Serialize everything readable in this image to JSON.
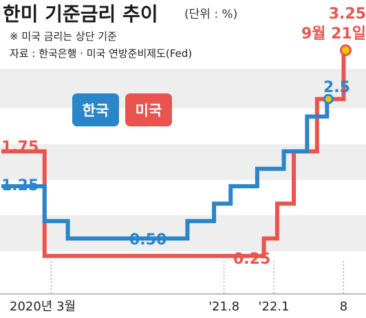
{
  "header": {
    "title": "한미 기준금리 추이",
    "unit": "(단위 : %)",
    "note": "※ 미국 금리는 상단 기준",
    "source": "자료 : 한국은행 · 미국 연방준비제도(Fed)"
  },
  "colors": {
    "korea": "#2a86c8",
    "us": "#e8554e",
    "band": "#eeeeee"
  },
  "chart_data": {
    "type": "line",
    "title": "한미 기준금리 추이",
    "unit": "%",
    "step": true,
    "grid": "horizontal bands",
    "legend_position": "top-left",
    "x_ticks": [
      "2020년 3월",
      "'21.8",
      "'22.1",
      "8"
    ],
    "series": [
      {
        "name": "한국",
        "color": "#2a86c8",
        "points": [
          {
            "x": 0.0,
            "y": 1.25
          },
          {
            "x": 1.3,
            "y": 0.75
          },
          {
            "x": 2.0,
            "y": 0.5
          },
          {
            "x": 5.6,
            "y": 0.75
          },
          {
            "x": 6.4,
            "y": 1.0
          },
          {
            "x": 6.9,
            "y": 1.25
          },
          {
            "x": 7.7,
            "y": 1.5
          },
          {
            "x": 8.5,
            "y": 1.75
          },
          {
            "x": 9.2,
            "y": 2.25
          },
          {
            "x": 9.8,
            "y": 2.5
          },
          {
            "x": 10.0,
            "y": 2.5
          }
        ]
      },
      {
        "name": "미국",
        "color": "#e8554e",
        "points": [
          {
            "x": 0.0,
            "y": 1.75
          },
          {
            "x": 1.3,
            "y": 0.25
          },
          {
            "x": 7.9,
            "y": 0.5
          },
          {
            "x": 8.3,
            "y": 1.0
          },
          {
            "x": 8.8,
            "y": 1.75
          },
          {
            "x": 9.5,
            "y": 2.5
          },
          {
            "x": 10.3,
            "y": 3.25
          },
          {
            "x": 10.3,
            "y": 3.25
          }
        ]
      }
    ],
    "data_labels": [
      {
        "series": "미국",
        "text": "1.75",
        "x": 0.0,
        "y": 1.75
      },
      {
        "series": "한국",
        "text": "1.25",
        "x": 0.0,
        "y": 1.25
      },
      {
        "series": "한국",
        "text": "0.50",
        "x": 3.8,
        "y": 0.5
      },
      {
        "series": "미국",
        "text": "0.25",
        "x": 6.8,
        "y": 0.25
      },
      {
        "series": "한국",
        "text": "2.5",
        "x": 9.8,
        "y": 2.5
      },
      {
        "series": "미국",
        "text": "3.25",
        "x": 10.3,
        "y": 3.25
      },
      {
        "series": "미국",
        "text": "9월 21일",
        "x": 10.3,
        "y": 3.25
      }
    ]
  }
}
